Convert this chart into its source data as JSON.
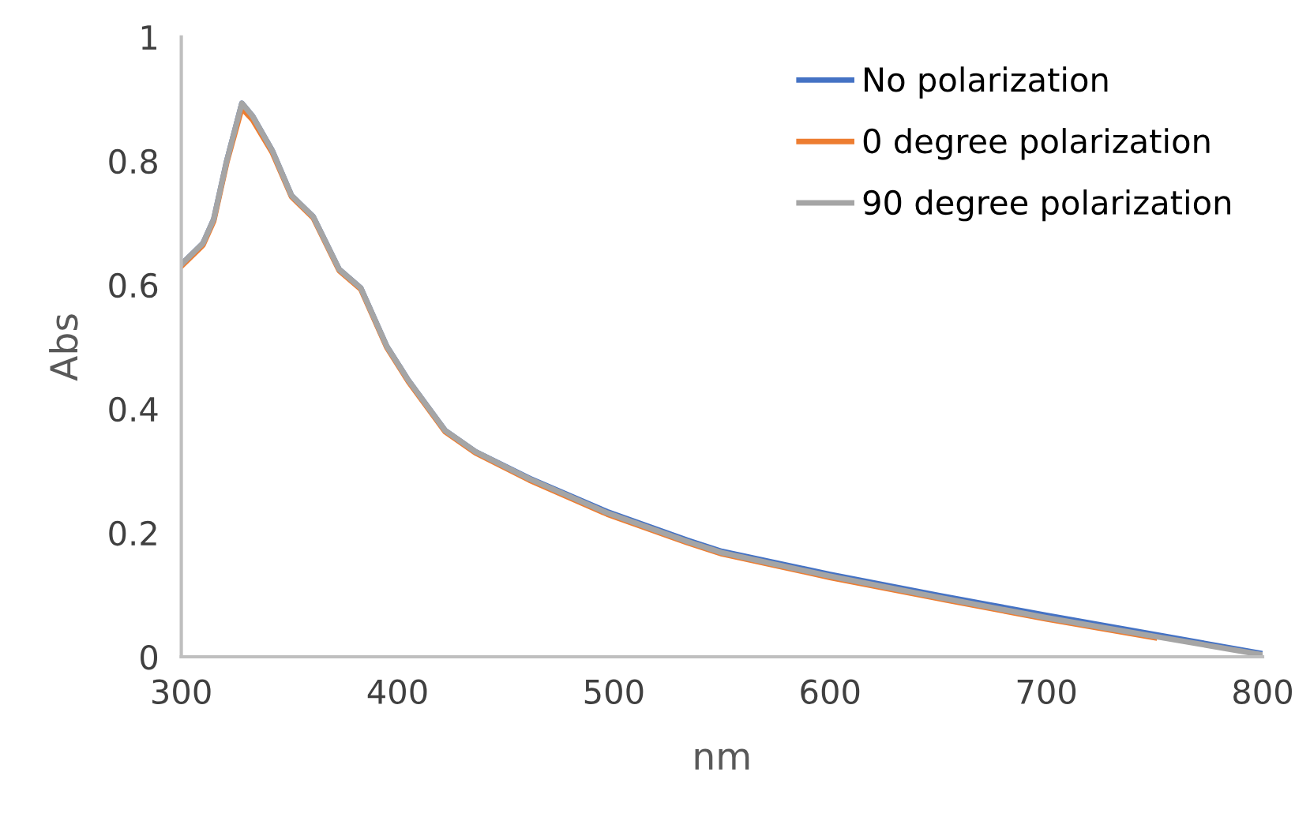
{
  "chart_data": {
    "type": "line",
    "xlabel": "nm",
    "ylabel": "Abs",
    "x": [
      300,
      310,
      315,
      321,
      328,
      333,
      342,
      351,
      361,
      373,
      383,
      395,
      405,
      422,
      436,
      461,
      497,
      534,
      550,
      600,
      650,
      700,
      750,
      800
    ],
    "series": [
      {
        "name": "No polarization",
        "color": "#4472c4",
        "values": [
          0.633,
          0.667,
          0.706,
          0.8,
          0.893,
          0.872,
          0.817,
          0.744,
          0.71,
          0.625,
          0.595,
          0.501,
          0.446,
          0.365,
          0.331,
          0.288,
          0.234,
          0.188,
          0.17,
          0.133,
          0.099,
          0.067,
          0.036,
          0.005
        ]
      },
      {
        "name": "0 degree polarization",
        "color": "#ed7d31",
        "values": [
          0.63,
          0.664,
          0.703,
          0.797,
          0.885,
          0.866,
          0.814,
          0.742,
          0.708,
          0.623,
          0.593,
          0.499,
          0.444,
          0.363,
          0.329,
          0.285,
          0.23,
          0.184,
          0.166,
          0.128,
          0.094,
          0.061,
          0.031,
          null
        ]
      },
      {
        "name": "90 degree polarization",
        "color": "#a5a5a5",
        "values": [
          0.633,
          0.667,
          0.706,
          0.8,
          0.893,
          0.872,
          0.817,
          0.744,
          0.71,
          0.625,
          0.595,
          0.501,
          0.446,
          0.365,
          0.331,
          0.287,
          0.232,
          0.186,
          0.168,
          0.13,
          0.096,
          0.063,
          0.033,
          0.003
        ]
      }
    ],
    "xlim": [
      300,
      800
    ],
    "xticks": [
      300,
      400,
      500,
      600,
      700,
      800
    ],
    "ylim": [
      0,
      1
    ],
    "yticks": [
      0,
      0.2,
      0.4,
      0.6,
      0.8,
      1
    ],
    "grid": false,
    "legend": "top right",
    "marker": "none",
    "line_style": "solid"
  }
}
